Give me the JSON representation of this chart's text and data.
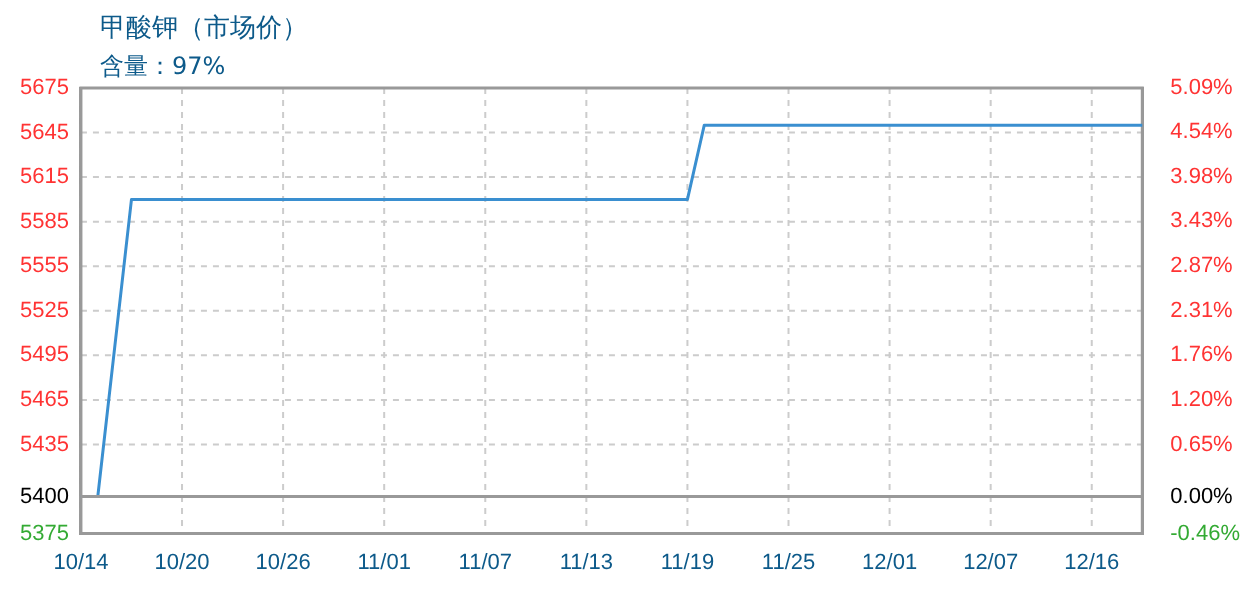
{
  "chart_data": {
    "type": "line",
    "title": "甲酸钾（市场价）",
    "subtitle": "含量：97%",
    "categories": [
      "10/14",
      null,
      null,
      null,
      null,
      null,
      "10/20",
      null,
      null,
      null,
      null,
      null,
      "10/26",
      null,
      null,
      null,
      null,
      null,
      "11/01",
      null,
      null,
      null,
      null,
      null,
      "11/07",
      null,
      null,
      null,
      null,
      null,
      "11/13",
      null,
      null,
      null,
      null,
      null,
      "11/19",
      null,
      null,
      null,
      null,
      null,
      "11/25",
      null,
      null,
      null,
      null,
      null,
      "12/01",
      null,
      null,
      null,
      null,
      null,
      "12/07",
      null,
      null,
      null,
      null,
      null,
      "12/16",
      null,
      null,
      null
    ],
    "series": [
      {
        "color": "#3a8fd0",
        "values": [
          5400,
          5400,
          5500,
          5600,
          5600,
          5600,
          5600,
          5600,
          5600,
          5600,
          5600,
          5600,
          5600,
          5600,
          5600,
          5600,
          5600,
          5600,
          5600,
          5600,
          5600,
          5600,
          5600,
          5600,
          5600,
          5600,
          5600,
          5600,
          5600,
          5600,
          5600,
          5600,
          5600,
          5600,
          5600,
          5600,
          5600,
          5650,
          5650,
          5650,
          5650,
          5650,
          5650,
          5650,
          5650,
          5650,
          5650,
          5650,
          5650,
          5650,
          5650,
          5650,
          5650,
          5650,
          5650,
          5650,
          5650,
          5650,
          5650,
          5650,
          5650,
          5650,
          5650,
          5650
        ]
      }
    ],
    "ylim": [
      5375,
      5675
    ],
    "yticks": [
      5375,
      5400,
      5435,
      5465,
      5495,
      5525,
      5555,
      5585,
      5615,
      5645,
      5675
    ],
    "y2lim": [
      -0.46,
      5.09
    ],
    "y2ticks": [
      {
        "value": -0.46,
        "label": "-0.46%"
      },
      {
        "value": 0,
        "label": "0.00%"
      },
      {
        "value": 0.65,
        "label": "0.65%"
      },
      {
        "value": 1.2,
        "label": "1.20%"
      },
      {
        "value": 1.76,
        "label": "1.76%"
      },
      {
        "value": 2.31,
        "label": "2.31%"
      },
      {
        "value": 2.87,
        "label": "2.87%"
      },
      {
        "value": 3.43,
        "label": "3.43%"
      },
      {
        "value": 3.98,
        "label": "3.98%"
      },
      {
        "value": 4.54,
        "label": "4.54%"
      },
      {
        "value": 5.09,
        "label": "5.09%"
      }
    ],
    "ref_lines": [
      {
        "axis": "y",
        "value": 5400,
        "color": "#999999"
      }
    ],
    "grid": true,
    "marker": "none",
    "line_style": "solid"
  }
}
